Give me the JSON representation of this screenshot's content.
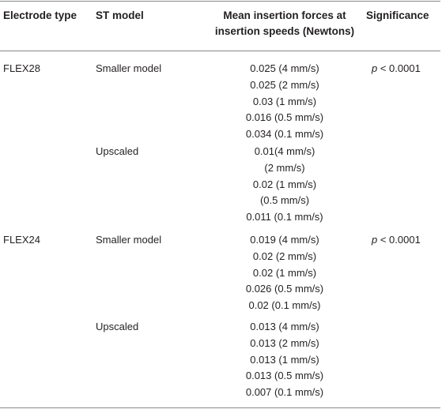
{
  "headers": {
    "electrode_type": "Electrode type",
    "st_model": "ST model",
    "mean_forces_line1": "Mean insertion forces at",
    "mean_forces_line2": "insertion speeds (Newtons)",
    "significance": "Significance"
  },
  "groups": [
    {
      "electrode": "FLEX28",
      "significance_p": "p",
      "significance_rest": " < 0.0001",
      "models": [
        {
          "name": "Smaller model",
          "values": [
            "0.025 (4 mm/s)",
            "0.025 (2 mm/s)",
            "0.03 (1 mm/s)",
            "0.016 (0.5 mm/s)",
            "0.034 (0.1 mm/s)"
          ]
        },
        {
          "name": "Upscaled",
          "values": [
            "0.01(4 mm/s)",
            "(2 mm/s)",
            "0.02 (1 mm/s)",
            "(0.5 mm/s)",
            "0.011 (0.1 mm/s)"
          ]
        }
      ]
    },
    {
      "electrode": "FLEX24",
      "significance_p": "p",
      "significance_rest": " < 0.0001",
      "models": [
        {
          "name": "Smaller model",
          "values": [
            "0.019 (4 mm/s)",
            "0.02 (2 mm/s)",
            "0.02 (1 mm/s)",
            "0.026 (0.5 mm/s)",
            "0.02 (0.1 mm/s)"
          ]
        },
        {
          "name": "Upscaled",
          "values": [
            "0.013 (4 mm/s)",
            "0.013 (2 mm/s)",
            "0.013 (1 mm/s)",
            "0.013 (0.5 mm/s)",
            "0.007 (0.1 mm/s)"
          ]
        }
      ]
    }
  ]
}
